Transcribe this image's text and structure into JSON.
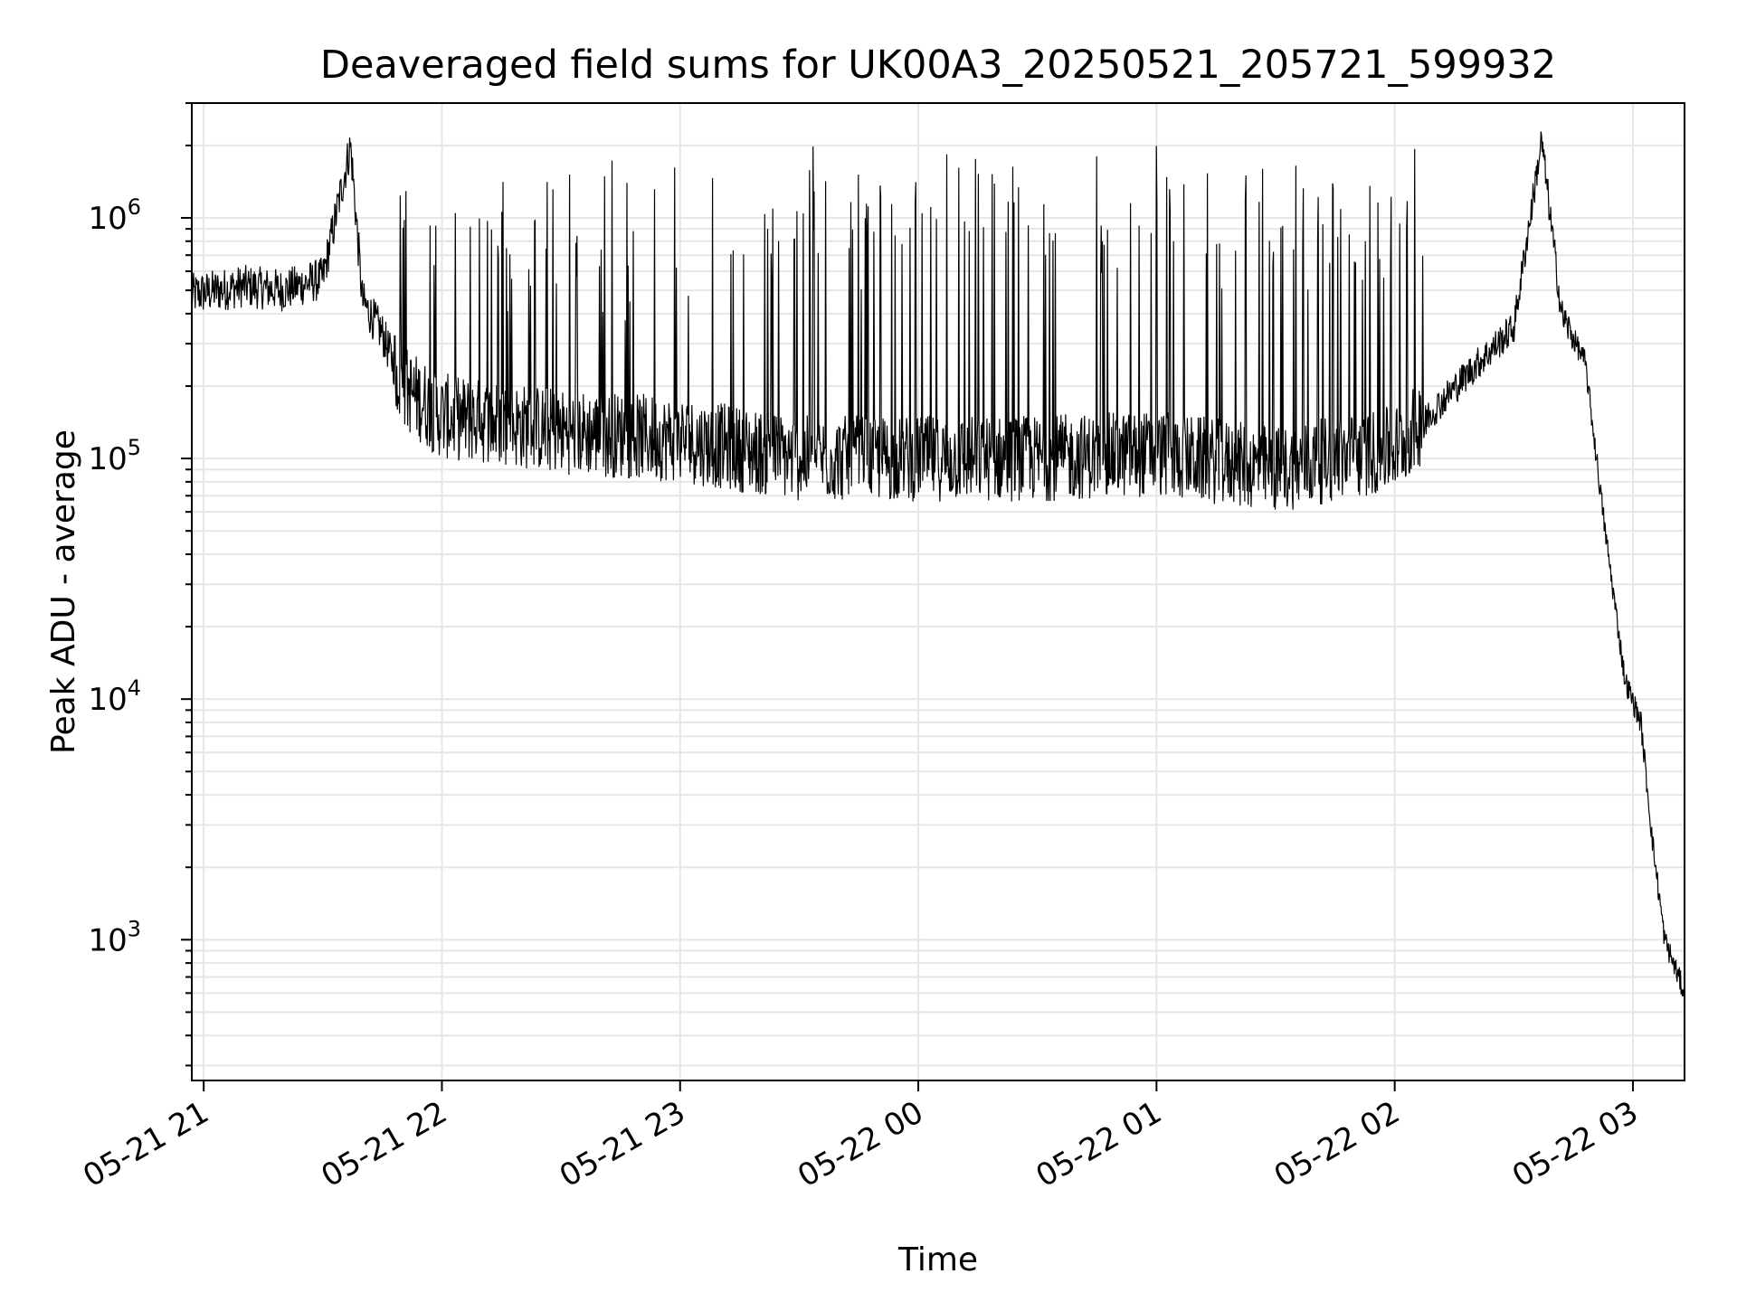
{
  "chart_data": {
    "type": "line",
    "title": "Deaveraged field sums for UK00A3_20250521_205721_599932",
    "xlabel": "Time",
    "ylabel": "Peak ADU - average",
    "y_scale": "log",
    "grid": true,
    "legend": "none",
    "xlim": [
      "2025-05-21 20:57",
      "2025-05-22 03:13"
    ],
    "ylim": [
      260,
      3000000
    ],
    "x_ticks": [
      {
        "value": "2025-05-21 21:00",
        "label": "05-21 21"
      },
      {
        "value": "2025-05-21 22:00",
        "label": "05-21 22"
      },
      {
        "value": "2025-05-21 23:00",
        "label": "05-21 23"
      },
      {
        "value": "2025-05-22 00:00",
        "label": "05-22 00"
      },
      {
        "value": "2025-05-22 01:00",
        "label": "05-22 01"
      },
      {
        "value": "2025-05-22 02:00",
        "label": "05-22 02"
      },
      {
        "value": "2025-05-22 03:00",
        "label": "05-22 03"
      }
    ],
    "y_ticks": [
      {
        "value": 1000,
        "base": "10",
        "exp": "3"
      },
      {
        "value": 10000,
        "base": "10",
        "exp": "4"
      },
      {
        "value": 100000,
        "base": "10",
        "exp": "5"
      },
      {
        "value": 1000000,
        "base": "10",
        "exp": "6"
      }
    ],
    "series": [
      {
        "color": "#000000",
        "style": "jagged thin line with many sharp spikes",
        "points": [
          [
            "2025-05-21 20:57",
            480000
          ],
          [
            "2025-05-21 21:10",
            520000
          ],
          [
            "2025-05-21 21:20",
            500000
          ],
          [
            "2025-05-21 21:30",
            560000
          ],
          [
            "2025-05-21 21:37",
            2000000
          ],
          [
            "2025-05-21 21:40",
            450000
          ],
          [
            "2025-05-21 21:45",
            330000
          ],
          [
            "2025-05-21 21:50",
            200000
          ],
          [
            "2025-05-21 22:00",
            150000
          ],
          [
            "2025-05-21 22:30",
            130000
          ],
          [
            "2025-05-21 23:00",
            120000
          ],
          [
            "2025-05-21 23:30",
            100000
          ],
          [
            "2025-05-22 00:00",
            100000
          ],
          [
            "2025-05-22 00:30",
            100000
          ],
          [
            "2025-05-22 01:00",
            105000
          ],
          [
            "2025-05-22 01:30",
            90000
          ],
          [
            "2025-05-22 02:00",
            110000
          ],
          [
            "2025-05-22 02:10",
            160000
          ],
          [
            "2025-05-22 02:20",
            240000
          ],
          [
            "2025-05-22 02:30",
            350000
          ],
          [
            "2025-05-22 02:37",
            2100000
          ],
          [
            "2025-05-22 02:42",
            400000
          ],
          [
            "2025-05-22 02:48",
            250000
          ],
          [
            "2025-05-22 02:53",
            50000
          ],
          [
            "2025-05-22 02:58",
            12000
          ],
          [
            "2025-05-22 03:02",
            8000
          ],
          [
            "2025-05-22 03:05",
            2500
          ],
          [
            "2025-05-22 03:08",
            1000
          ],
          [
            "2025-05-22 03:13",
            600
          ]
        ],
        "spike_peaks": [
          1000000,
          1100000,
          1300000,
          1600000,
          1500000,
          1300000,
          1400000,
          1500000,
          1600000,
          1500000,
          1400000,
          1900000,
          1200000
        ]
      }
    ]
  }
}
